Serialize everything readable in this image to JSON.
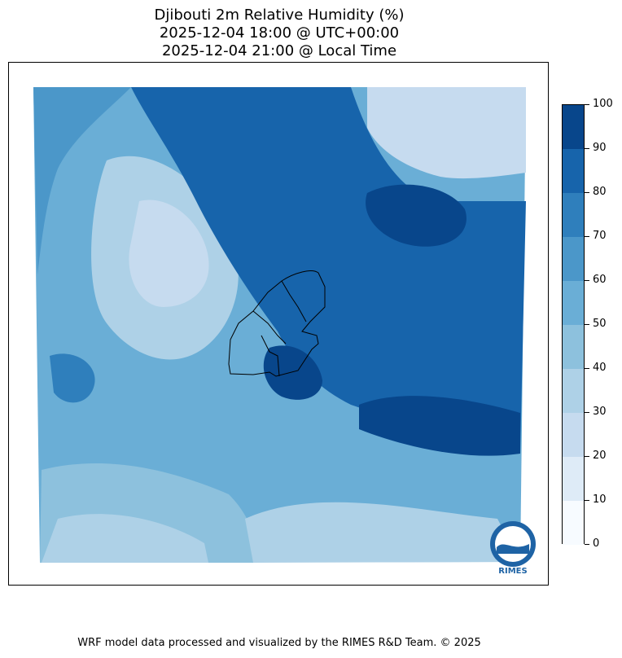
{
  "title": {
    "line1": "Djibouti 2m Relative Humidity (%)",
    "line2": "2025-12-04 18:00 @ UTC+00:00",
    "line3": "2025-12-04 21:00 @ Local Time"
  },
  "colorbar": {
    "ticks": [
      "0",
      "10",
      "20",
      "30",
      "40",
      "50",
      "60",
      "70",
      "80",
      "90",
      "100"
    ],
    "colors": [
      "#f7fbff",
      "#deebf7",
      "#c6dbef",
      "#aed1e7",
      "#8dc1dd",
      "#6aaed6",
      "#4b97c9",
      "#2f7fbc",
      "#1764ab",
      "#08468b"
    ]
  },
  "logo": {
    "text": "RIMES"
  },
  "footer": {
    "text": "WRF model data processed and visualized by the RIMES R&D Team. © 2025"
  }
}
